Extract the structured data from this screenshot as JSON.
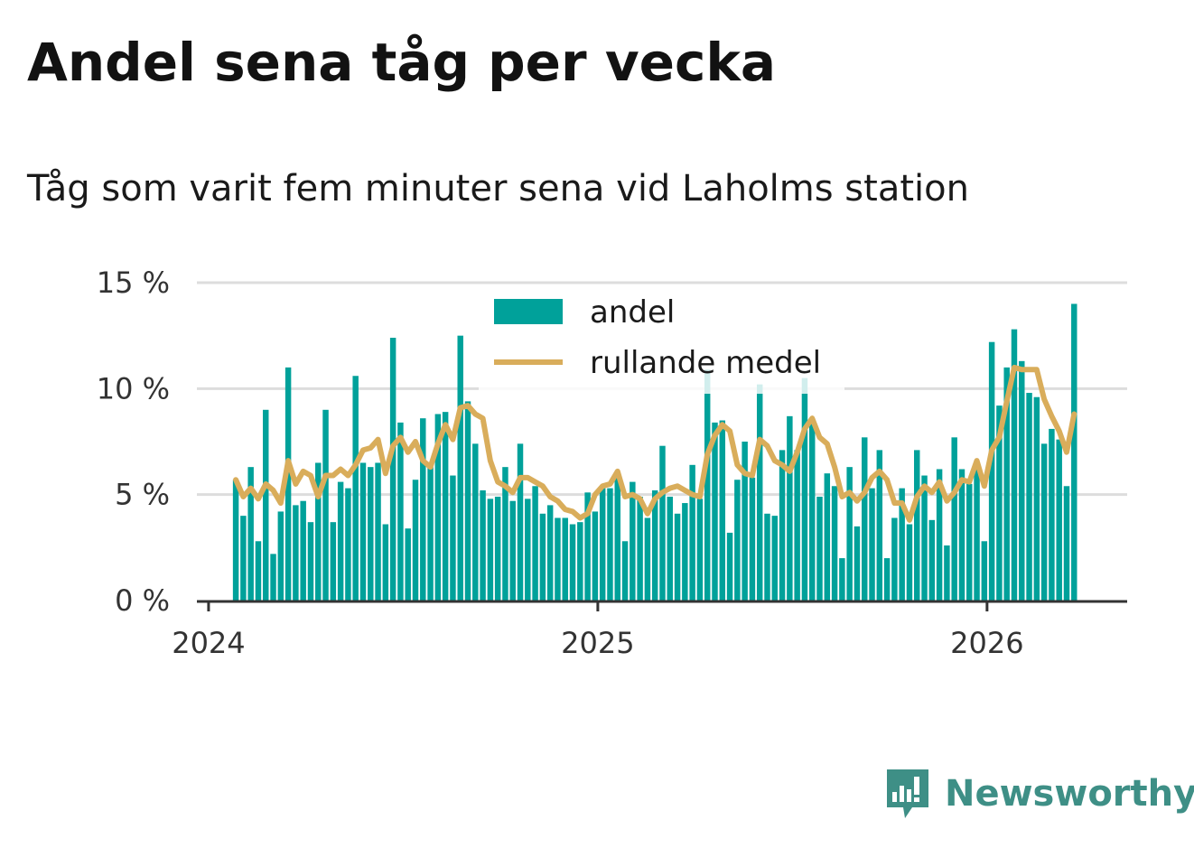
{
  "title": "Andel sena tåg per vecka",
  "subtitle": "Tåg som varit fem minuter sena vid Laholms station",
  "brand": {
    "name": "Newsworthy",
    "icon": "newsworthy-logo-icon",
    "color": "#3e8f86"
  },
  "colors": {
    "bar": "#00a19a",
    "line": "#d9ad5b",
    "grid": "#dddddd",
    "axis": "#333333"
  },
  "chart_data": {
    "type": "bar",
    "xlabel": "",
    "ylabel": "",
    "ylim": [
      0,
      15
    ],
    "xlim": [
      2023.97,
      2026.36
    ],
    "grid": true,
    "legend_position": "top-center",
    "y_ticks": [
      {
        "value": 0,
        "label": "0 %"
      },
      {
        "value": 5,
        "label": "5 %"
      },
      {
        "value": 10,
        "label": "10 %"
      },
      {
        "value": 15,
        "label": "15 %"
      }
    ],
    "x_ticks": [
      {
        "value": 2024,
        "label": "2024"
      },
      {
        "value": 2025,
        "label": "2025"
      },
      {
        "value": 2026,
        "label": "2026"
      }
    ],
    "x_start": 2024.07,
    "x_step": 0.01923,
    "series": [
      {
        "name": "andel",
        "type": "bar",
        "values": [
          5.7,
          4.0,
          6.3,
          2.8,
          9.0,
          2.2,
          4.2,
          11.0,
          4.5,
          4.7,
          3.7,
          6.5,
          9.0,
          3.7,
          5.6,
          5.3,
          10.6,
          6.5,
          6.3,
          6.5,
          3.6,
          12.4,
          8.4,
          3.4,
          5.7,
          8.6,
          6.3,
          8.8,
          8.9,
          5.9,
          12.5,
          9.4,
          7.4,
          5.2,
          4.8,
          4.9,
          6.3,
          4.7,
          7.4,
          4.8,
          5.4,
          4.1,
          4.5,
          3.9,
          3.9,
          3.6,
          3.7,
          5.1,
          4.2,
          5.3,
          5.3,
          5.8,
          2.8,
          5.6,
          4.9,
          3.9,
          5.2,
          7.3,
          4.9,
          4.1,
          4.6,
          6.4,
          4.8,
          10.9,
          8.4,
          8.5,
          3.2,
          5.7,
          7.5,
          5.8,
          10.2,
          4.1,
          4.0,
          7.1,
          8.7,
          7.1,
          10.5,
          8.6,
          4.9,
          6.0,
          5.4,
          2.0,
          6.3,
          3.5,
          7.7,
          5.3,
          7.1,
          2.0,
          3.9,
          5.3,
          3.6,
          7.1,
          5.9,
          3.8,
          6.2,
          2.6,
          7.7,
          6.2,
          5.5,
          6.5,
          2.8,
          12.2,
          9.2,
          11.0,
          12.8,
          11.3,
          9.8,
          9.6,
          7.4,
          8.1,
          7.6,
          5.4,
          14.0
        ]
      },
      {
        "name": "rullande medel",
        "type": "line",
        "values": [
          5.7,
          4.9,
          5.3,
          4.8,
          5.5,
          5.2,
          4.6,
          6.6,
          5.5,
          6.1,
          5.9,
          4.9,
          5.9,
          5.9,
          6.2,
          5.9,
          6.4,
          7.1,
          7.2,
          7.6,
          6.0,
          7.3,
          7.7,
          7.0,
          7.5,
          6.6,
          6.3,
          7.4,
          8.3,
          7.6,
          9.1,
          9.2,
          8.8,
          8.6,
          6.6,
          5.6,
          5.4,
          5.1,
          5.8,
          5.8,
          5.6,
          5.4,
          4.9,
          4.7,
          4.3,
          4.2,
          3.9,
          4.1,
          5.0,
          5.4,
          5.5,
          6.1,
          4.9,
          5.0,
          4.8,
          4.1,
          4.8,
          5.1,
          5.3,
          5.4,
          5.2,
          5.0,
          4.9,
          6.9,
          7.8,
          8.3,
          8.0,
          6.4,
          6.0,
          5.9,
          7.6,
          7.3,
          6.6,
          6.4,
          6.1,
          7.0,
          8.1,
          8.6,
          7.7,
          7.4,
          6.3,
          4.9,
          5.1,
          4.7,
          5.1,
          5.8,
          6.1,
          5.7,
          4.6,
          4.6,
          3.8,
          4.9,
          5.4,
          5.1,
          5.6,
          4.7,
          5.1,
          5.7,
          5.6,
          6.6,
          5.4,
          7.1,
          7.7,
          9.4,
          11.0,
          10.9,
          10.9,
          10.9,
          9.5,
          8.7,
          8.0,
          7.0,
          8.8
        ]
      }
    ],
    "legend": [
      "andel",
      "rullande medel"
    ]
  }
}
